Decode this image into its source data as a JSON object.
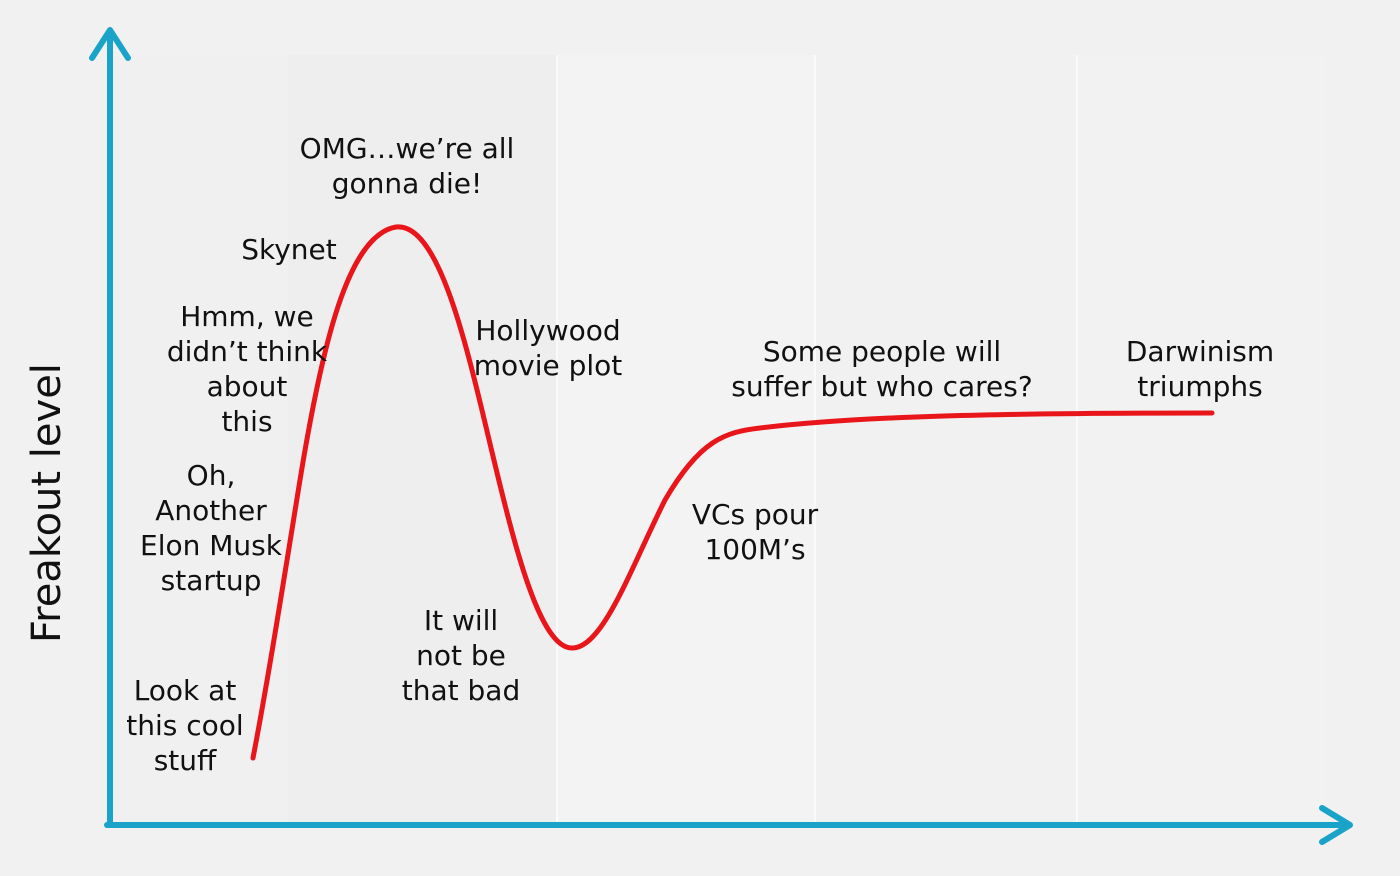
{
  "diagram": {
    "y_axis_label": "Freakout level",
    "colors": {
      "axis": "#1aa3c8",
      "curve": "#e8161b",
      "text": "#111111"
    },
    "labels": {
      "look_at_this": "Look at\nthis cool\nstuff",
      "elon_musk": "Oh,\nAnother\nElon Musk\nstartup",
      "didnt_think": "Hmm, we\ndidn’t think\nabout\nthis",
      "skynet": "Skynet",
      "omg": "OMG…we’re all\ngonna die!",
      "hollywood": "Hollywood\nmovie plot",
      "not_that_bad": "It will\nnot be\nthat bad",
      "vcs_pour": "VCs pour\n100M’s",
      "some_people": "Some people will\nsuffer but who cares?",
      "darwinism": "Darwinism\ntriumphs"
    }
  }
}
